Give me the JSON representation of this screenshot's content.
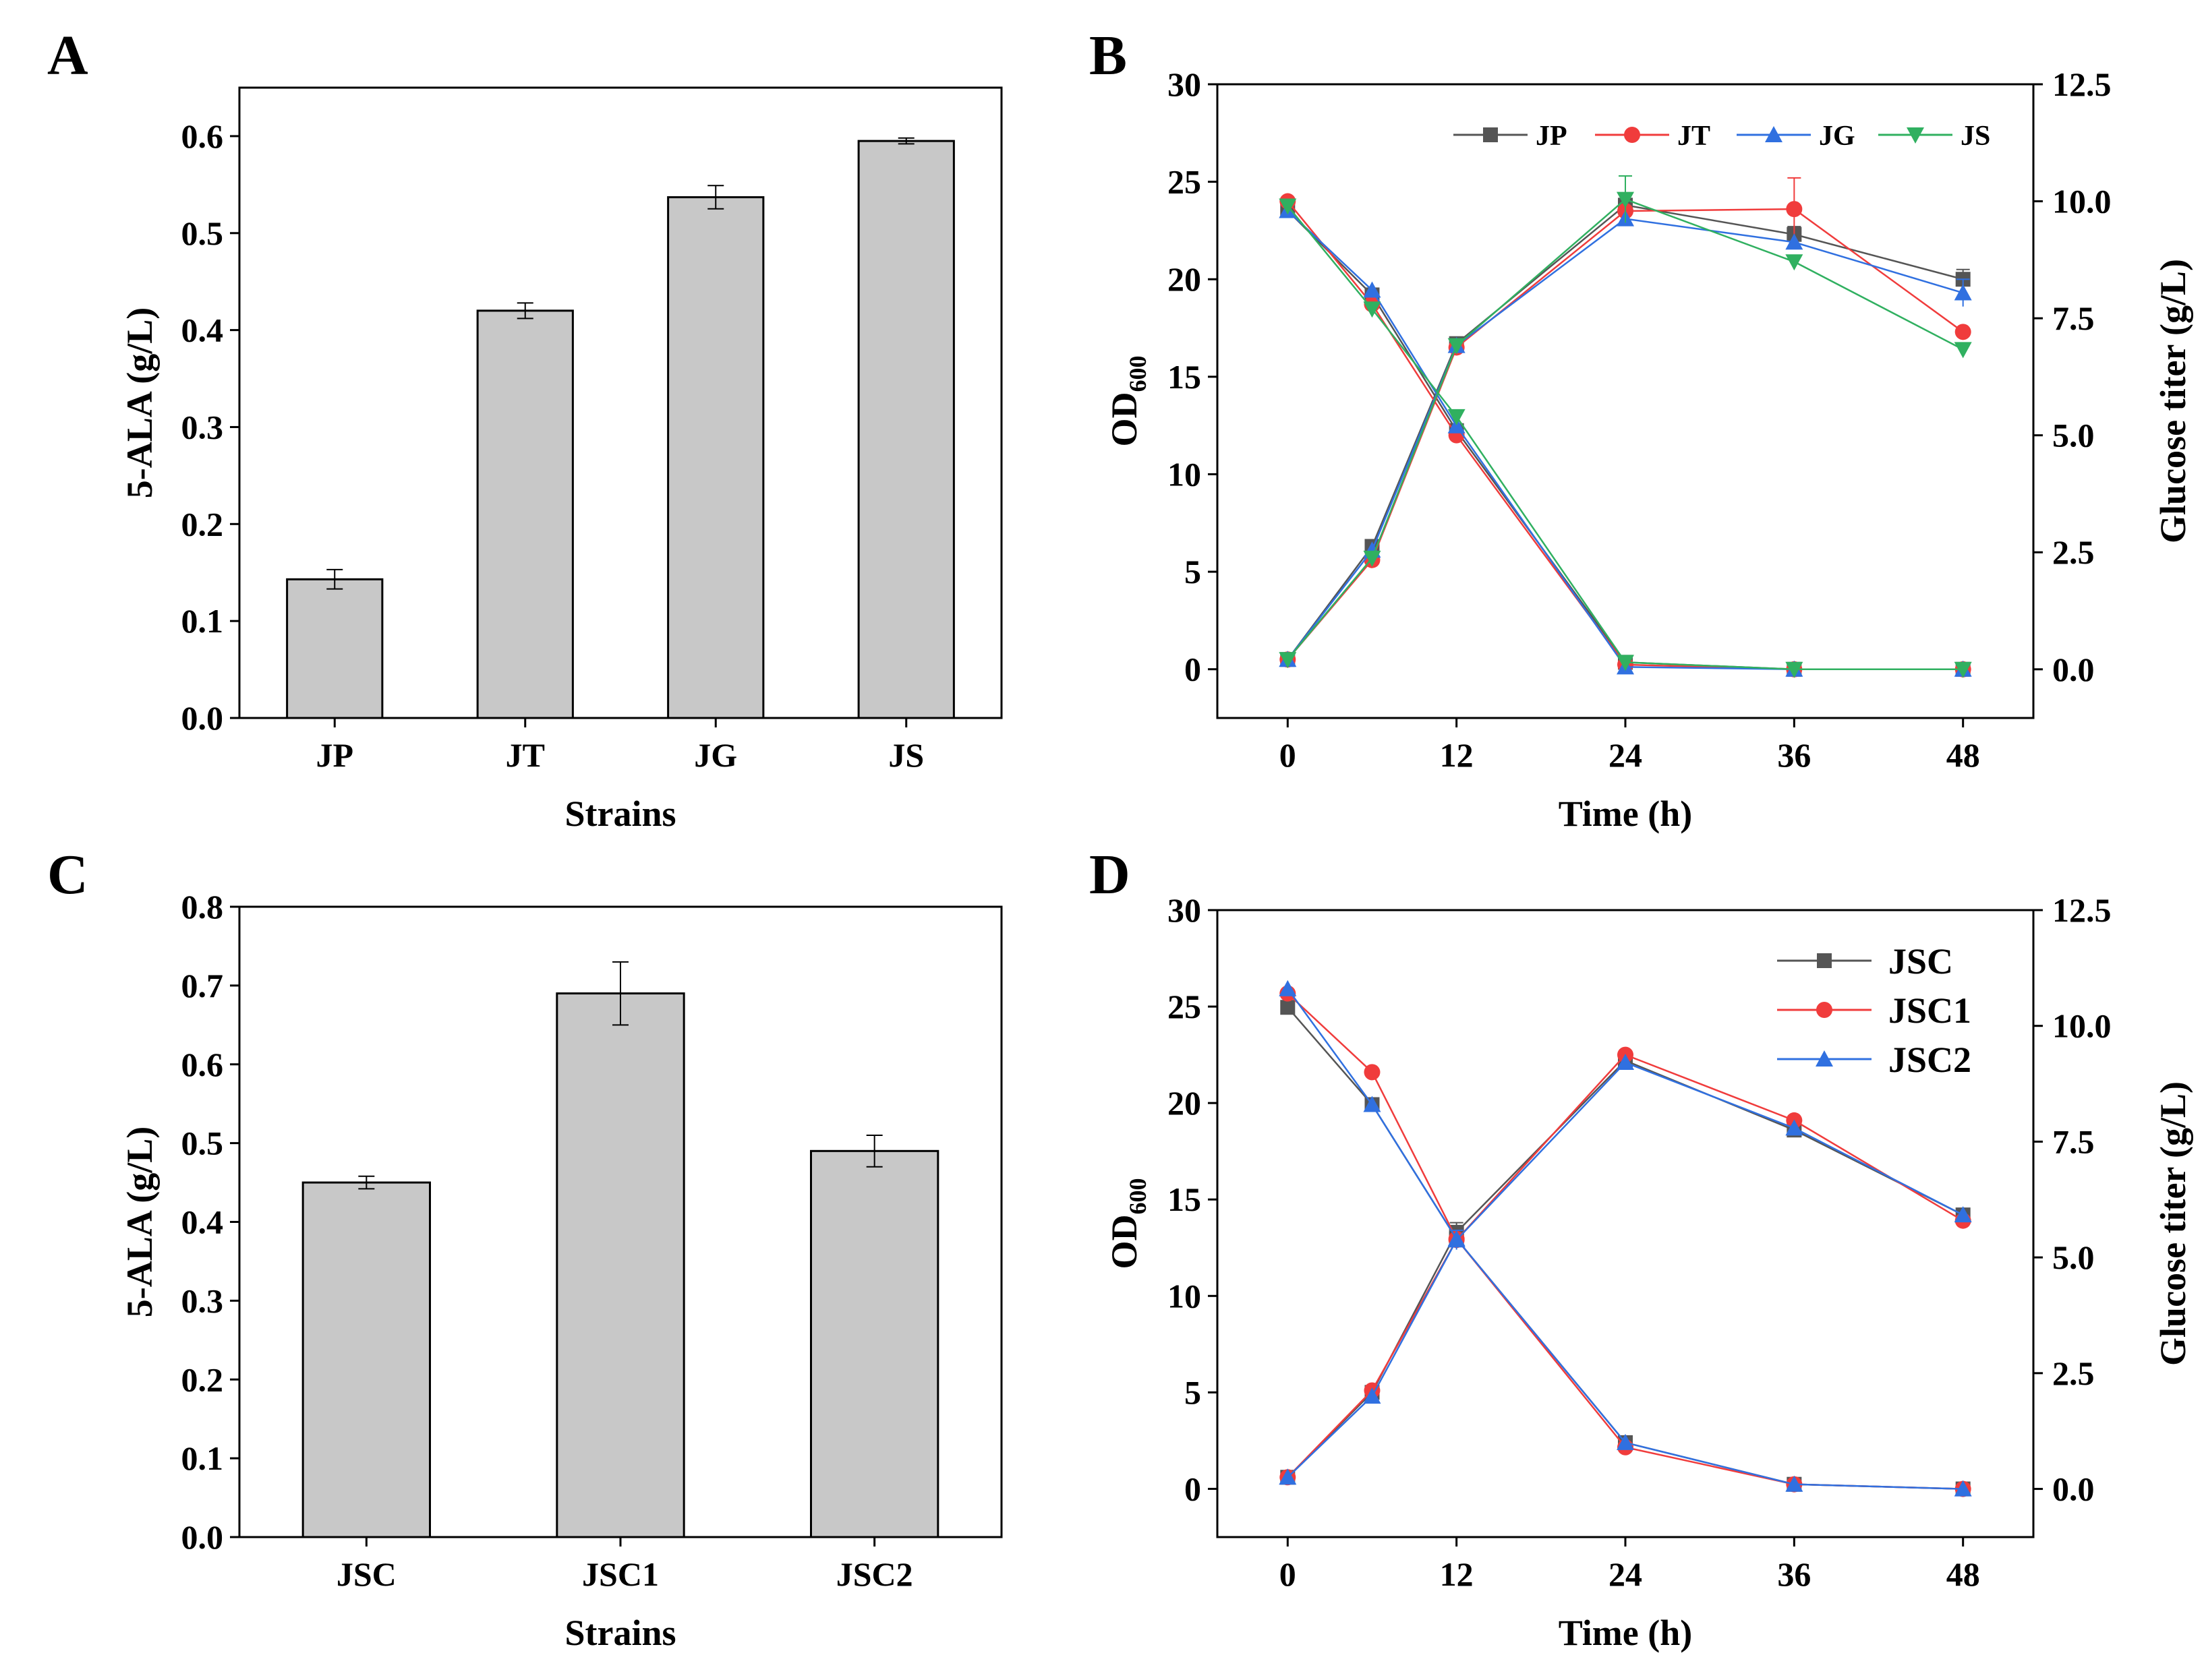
{
  "figure": {
    "panels": [
      "A",
      "B",
      "C",
      "D"
    ]
  },
  "chart_data": [
    {
      "panel": "A",
      "type": "bar",
      "title": "",
      "xlabel": "Strains",
      "ylabel": "5-ALA (g/L)",
      "categories": [
        "JP",
        "JT",
        "JG",
        "JS"
      ],
      "values": [
        0.143,
        0.42,
        0.537,
        0.595
      ],
      "errors": [
        0.01,
        0.008,
        0.012,
        0.003
      ],
      "ylim": [
        0,
        0.65
      ],
      "yticks": [
        0.0,
        0.1,
        0.2,
        0.3,
        0.4,
        0.5,
        0.6
      ],
      "bar_color": "#c8c8c8"
    },
    {
      "panel": "B",
      "type": "line",
      "title": "",
      "xlabel": "Time (h)",
      "ylabel": "OD600",
      "ylabel_main": "OD",
      "ylabel_sub": "600",
      "y2label": "Glucose titer (g/L)",
      "x": [
        0,
        6,
        12,
        24,
        36,
        48
      ],
      "xticks": [
        0,
        12,
        24,
        36,
        48
      ],
      "xlim": [
        -5,
        53
      ],
      "ylim": [
        -2.5,
        30
      ],
      "yticks": [
        0,
        5,
        10,
        15,
        20,
        25,
        30
      ],
      "y2lim": [
        -1.04,
        12.5
      ],
      "y2ticks": [
        "0.0",
        "2.5",
        "5.0",
        "7.5",
        "10.0",
        "12.5"
      ],
      "legend": {
        "placement": "top-right",
        "layout": "horizontal"
      },
      "series": [
        {
          "name": "JP",
          "color": "#555555",
          "marker": "square",
          "od": [
            0.5,
            6.3,
            16.7,
            23.8,
            22.3,
            20.0
          ],
          "od_err": [
            0,
            0,
            0,
            0,
            0.4,
            0.5
          ],
          "glucose": [
            9.8,
            8.0,
            5.1,
            0.15,
            0,
            0
          ]
        },
        {
          "name": "JT",
          "color": "#f03c3c",
          "marker": "circle",
          "od": [
            0.5,
            5.6,
            16.5,
            23.5,
            23.6,
            17.3
          ],
          "od_err": [
            0,
            0,
            0,
            0,
            1.6,
            0
          ],
          "glucose": [
            10.0,
            7.8,
            5.0,
            0.1,
            0,
            0
          ]
        },
        {
          "name": "JG",
          "color": "#3070e0",
          "marker": "triangle-up",
          "od": [
            0.5,
            6.1,
            16.6,
            23.1,
            21.9,
            19.3
          ],
          "od_err": [
            0,
            0,
            0,
            0,
            0,
            0.7
          ],
          "glucose": [
            9.8,
            8.1,
            5.2,
            0.05,
            0,
            0
          ]
        },
        {
          "name": "JS",
          "color": "#30b060",
          "marker": "triangle-down",
          "od": [
            0.5,
            5.7,
            16.6,
            24.1,
            20.9,
            16.4
          ],
          "od_err": [
            0,
            0,
            0,
            1.2,
            0,
            0
          ],
          "glucose": [
            9.9,
            7.7,
            5.4,
            0.15,
            0,
            0
          ]
        }
      ]
    },
    {
      "panel": "C",
      "type": "bar",
      "title": "",
      "xlabel": "Strains",
      "ylabel": "5-ALA (g/L)",
      "categories": [
        "JSC",
        "JSC1",
        "JSC2"
      ],
      "values": [
        0.45,
        0.69,
        0.49
      ],
      "errors": [
        0.008,
        0.04,
        0.02
      ],
      "ylim": [
        0,
        0.8
      ],
      "yticks": [
        0.0,
        0.1,
        0.2,
        0.3,
        0.4,
        0.5,
        0.6,
        0.7,
        0.8
      ],
      "bar_color": "#c8c8c8"
    },
    {
      "panel": "D",
      "type": "line",
      "title": "",
      "xlabel": "Time (h)",
      "ylabel": "OD600",
      "ylabel_main": "OD",
      "ylabel_sub": "600",
      "y2label": "Glucose titer (g/L)",
      "x": [
        0,
        6,
        12,
        24,
        36,
        48
      ],
      "xticks": [
        0,
        12,
        24,
        36,
        48
      ],
      "xlim": [
        -5,
        53
      ],
      "ylim": [
        -2.5,
        30
      ],
      "yticks": [
        0,
        5,
        10,
        15,
        20,
        25,
        30
      ],
      "y2lim": [
        -1.04,
        12.5
      ],
      "y2ticks": [
        "0.0",
        "2.5",
        "5.0",
        "7.5",
        "10.0",
        "12.5"
      ],
      "legend": {
        "placement": "top-right",
        "layout": "vertical"
      },
      "series": [
        {
          "name": "JSC",
          "color": "#555555",
          "marker": "square",
          "od": [
            0.6,
            5.0,
            13.3,
            22.2,
            18.6,
            14.2
          ],
          "od_err": [
            0,
            0,
            0.5,
            0,
            0,
            0
          ],
          "glucose": [
            10.4,
            8.3,
            5.4,
            1.0,
            0.1,
            0
          ]
        },
        {
          "name": "JSC1",
          "color": "#f03c3c",
          "marker": "circle",
          "od": [
            0.6,
            5.1,
            12.9,
            22.5,
            19.1,
            13.9
          ],
          "od_err": [
            0,
            0,
            0,
            0,
            0,
            0
          ],
          "glucose": [
            10.7,
            9.0,
            5.4,
            0.9,
            0.1,
            0
          ]
        },
        {
          "name": "JSC2",
          "color": "#3070e0",
          "marker": "triangle-up",
          "od": [
            0.6,
            4.8,
            12.9,
            22.1,
            18.7,
            14.2
          ],
          "od_err": [
            0,
            0,
            0.5,
            0,
            0,
            0
          ],
          "glucose": [
            10.8,
            8.3,
            5.4,
            1.0,
            0.1,
            0
          ]
        }
      ]
    }
  ]
}
